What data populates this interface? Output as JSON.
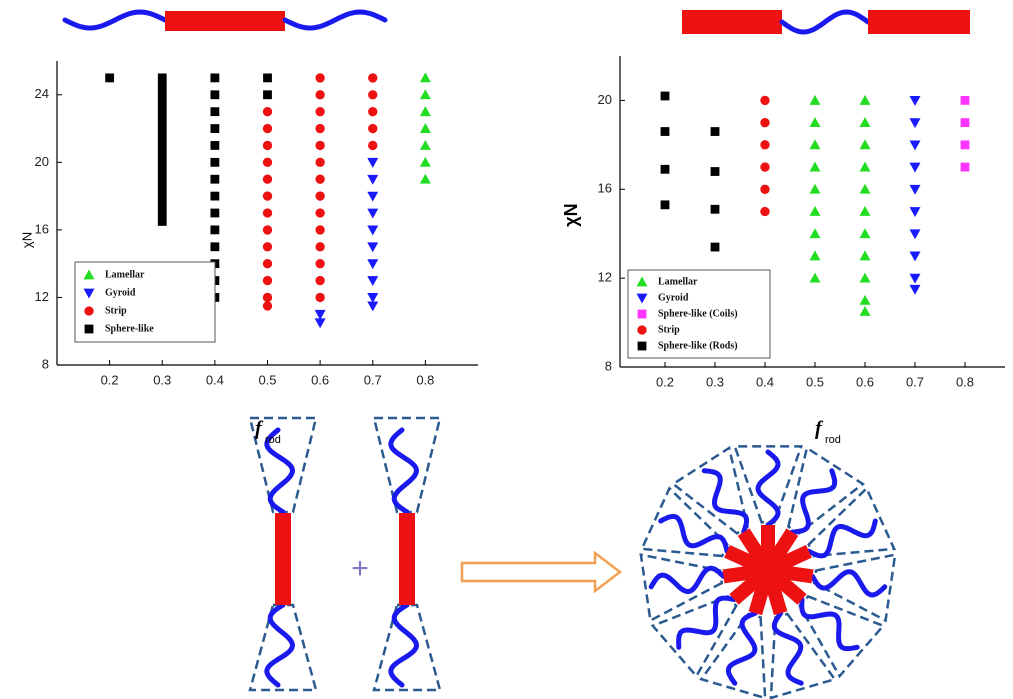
{
  "chart_data": [
    {
      "type": "scatter",
      "xlabel": "f",
      "xlabel_sub": "rod",
      "ylabel": "χN",
      "xlim": [
        0.1,
        0.9
      ],
      "xticks": [
        0.2,
        0.3,
        0.4,
        0.5,
        0.6,
        0.7,
        0.8
      ],
      "ylim": [
        8,
        26
      ],
      "yticks": [
        8,
        12,
        16,
        20,
        24
      ],
      "legend": "lower left",
      "series": [
        {
          "name": "Lamellar",
          "color": "#22dd22",
          "marker": "triangle-up",
          "x": [
            0.8,
            0.8,
            0.8,
            0.8,
            0.8,
            0.8,
            0.8
          ],
          "values": [
            25,
            24,
            23,
            22,
            21,
            20,
            19
          ]
        },
        {
          "name": "Gyroid",
          "color": "#1a1aff",
          "marker": "triangle-down",
          "x": [
            0.6,
            0.6,
            0.7,
            0.7,
            0.7,
            0.7,
            0.7,
            0.7,
            0.7,
            0.7,
            0.7,
            0.7
          ],
          "values": [
            11,
            10.5,
            20,
            19,
            18,
            17,
            16,
            15,
            14,
            13,
            12,
            11.5
          ]
        },
        {
          "name": "Strip",
          "color": "#ee1111",
          "marker": "circle",
          "x": [
            0.5,
            0.5,
            0.5,
            0.5,
            0.5,
            0.5,
            0.5,
            0.5,
            0.5,
            0.5,
            0.5,
            0.5,
            0.5,
            0.6,
            0.6,
            0.6,
            0.6,
            0.6,
            0.6,
            0.6,
            0.6,
            0.6,
            0.6,
            0.6,
            0.6,
            0.6,
            0.6,
            0.7,
            0.7,
            0.7,
            0.7,
            0.7
          ],
          "values": [
            23,
            22,
            21,
            20,
            19,
            18,
            17,
            16,
            15,
            14,
            13,
            12,
            11.5,
            25,
            24,
            23,
            22,
            21,
            20,
            19,
            18,
            17,
            16,
            15,
            14,
            13,
            12,
            25,
            24,
            23,
            22,
            21
          ]
        },
        {
          "name": "Sphere-like",
          "color": "#000000",
          "marker": "square",
          "x": [
            0.2,
            0.3,
            0.3,
            0.3,
            0.3,
            0.3,
            0.3,
            0.3,
            0.3,
            0.3,
            0.3,
            0.3,
            0.3,
            0.3,
            0.3,
            0.3,
            0.3,
            0.3,
            0.3,
            0.4,
            0.4,
            0.4,
            0.4,
            0.4,
            0.4,
            0.4,
            0.4,
            0.4,
            0.4,
            0.4,
            0.4,
            0.4,
            0.4,
            0.5,
            0.5
          ],
          "values": [
            25,
            25,
            24.5,
            24,
            23.5,
            23,
            22.5,
            22,
            21.5,
            21,
            20.5,
            20,
            19.5,
            19,
            18.5,
            18,
            17.5,
            17,
            16.5,
            25,
            24,
            23,
            22,
            21,
            20,
            19,
            18,
            17,
            16,
            15,
            14,
            13,
            12,
            25,
            24
          ]
        }
      ]
    },
    {
      "type": "scatter",
      "xlabel": "f",
      "xlabel_sub": "rod",
      "ylabel": "χN",
      "xlim": [
        0.11,
        0.88
      ],
      "xticks": [
        0.2,
        0.3,
        0.4,
        0.5,
        0.6,
        0.7,
        0.8
      ],
      "ylim": [
        8,
        22
      ],
      "yticks": [
        8,
        12,
        16,
        20
      ],
      "legend": "lower left",
      "series": [
        {
          "name": "Lamellar",
          "color": "#22dd22",
          "marker": "triangle-up",
          "x": [
            0.5,
            0.5,
            0.5,
            0.5,
            0.5,
            0.5,
            0.5,
            0.5,
            0.5,
            0.6,
            0.6,
            0.6,
            0.6,
            0.6,
            0.6,
            0.6,
            0.6,
            0.6,
            0.6,
            0.6
          ],
          "values": [
            20,
            19,
            18,
            17,
            16,
            15,
            14,
            13,
            12,
            20,
            19,
            18,
            17,
            16,
            15,
            14,
            13,
            12,
            11,
            10.5
          ]
        },
        {
          "name": "Gyroid",
          "color": "#1a1aff",
          "marker": "triangle-down",
          "x": [
            0.7,
            0.7,
            0.7,
            0.7,
            0.7,
            0.7,
            0.7,
            0.7,
            0.7,
            0.7
          ],
          "values": [
            20,
            19,
            18,
            17,
            16,
            15,
            14,
            13,
            12,
            11.5
          ]
        },
        {
          "name": "Sphere-like (Coils)",
          "color": "#ff33ff",
          "marker": "square",
          "x": [
            0.8,
            0.8,
            0.8,
            0.8
          ],
          "values": [
            20,
            19,
            18,
            17
          ]
        },
        {
          "name": "Strip",
          "color": "#ee1111",
          "marker": "circle",
          "x": [
            0.4,
            0.4,
            0.4,
            0.4,
            0.4,
            0.4
          ],
          "values": [
            20,
            19,
            18,
            17,
            16,
            15
          ]
        },
        {
          "name": "Sphere-like (Rods)",
          "color": "#000000",
          "marker": "square",
          "x": [
            0.2,
            0.2,
            0.2,
            0.2,
            0.3,
            0.3,
            0.3,
            0.3
          ],
          "values": [
            20.2,
            18.6,
            16.9,
            15.3,
            18.6,
            16.8,
            15.1,
            13.4
          ]
        }
      ]
    }
  ]
}
